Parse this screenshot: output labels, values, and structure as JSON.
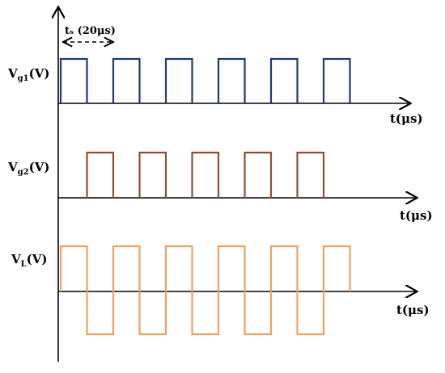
{
  "labels": {
    "period": "tₛ (20μs)",
    "vg1_main": "V",
    "vg1_sub": "g1",
    "vg1_unit": "(V)",
    "vg2_main": "V",
    "vg2_sub": "g2",
    "vg2_unit": "(V)",
    "vl_main": "V",
    "vl_sub": "L",
    "vl_unit": "(V)",
    "t_axis_1": "t(μs)",
    "t_axis_2": "t(μs)",
    "t_axis_3": "t(μs)"
  },
  "colors": {
    "vg1": "#1f3a6b",
    "vg2": "#8a5030",
    "vl": "#f0a060",
    "axis": "#000000"
  },
  "waveforms": {
    "vg1": {
      "pulses": 6,
      "high_fraction": 0.5,
      "phase_shift_fraction": 0.0,
      "polarity": "unipolar"
    },
    "vg2": {
      "pulses": 5,
      "high_fraction": 0.5,
      "phase_shift_fraction": 0.5,
      "polarity": "unipolar"
    },
    "vl": {
      "pulses": 6,
      "high_fraction": 0.5,
      "phase_shift_fraction": 0.0,
      "polarity": "bipolar"
    }
  },
  "period_us": 20
}
